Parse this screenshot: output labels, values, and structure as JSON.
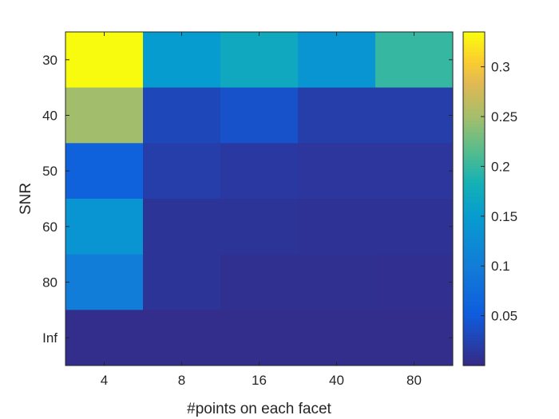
{
  "chart_data": {
    "type": "heatmap",
    "xlabel": "#points on each facet",
    "ylabel": "SNR",
    "x_categories": [
      "4",
      "8",
      "16",
      "40",
      "80"
    ],
    "y_categories": [
      "30",
      "40",
      "50",
      "60",
      "80",
      "Inf"
    ],
    "values": [
      [
        0.335,
        0.15,
        0.17,
        0.14,
        0.2
      ],
      [
        0.25,
        0.03,
        0.04,
        0.02,
        0.02
      ],
      [
        0.06,
        0.02,
        0.015,
        0.012,
        0.012
      ],
      [
        0.14,
        0.01,
        0.01,
        0.008,
        0.008
      ],
      [
        0.1,
        0.01,
        0.006,
        0.006,
        0.005
      ],
      [
        0.003,
        0.003,
        0.003,
        0.003,
        0.003
      ]
    ],
    "colorbar": {
      "colormap": "parula",
      "range": [
        0.0,
        0.335
      ],
      "ticks": [
        0.05,
        0.1,
        0.15,
        0.2,
        0.25,
        0.3
      ],
      "tick_labels": [
        "0.05",
        "0.1",
        "0.15",
        "0.2",
        "0.25",
        "0.3"
      ]
    }
  }
}
